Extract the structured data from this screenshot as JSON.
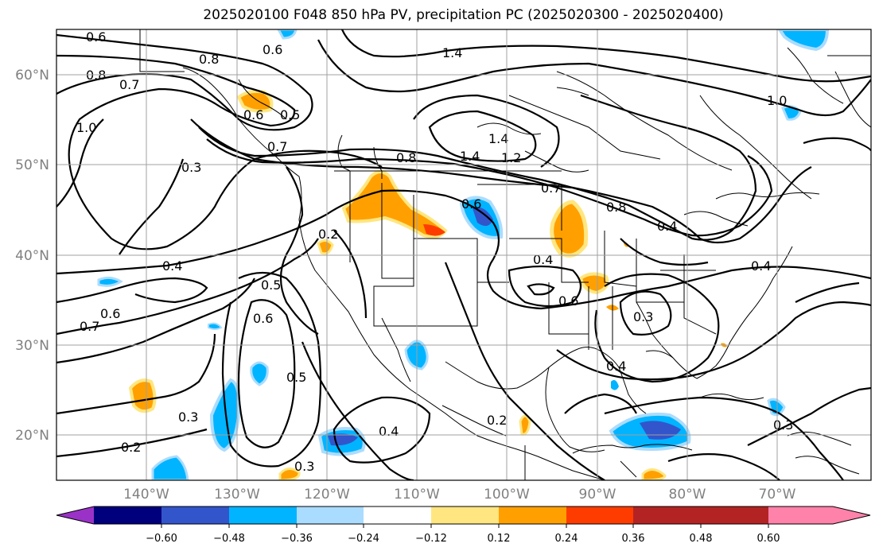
{
  "title": "2025020100 F048 850 hPa PV, precipitation PC (2025020300 - 2025020400)",
  "lat_labels": [
    "60°N",
    "50°N",
    "40°N",
    "30°N",
    "20°N"
  ],
  "lon_labels": [
    "140°W",
    "130°W",
    "120°W",
    "110°W",
    "100°W",
    "90°W",
    "80°W",
    "70°W"
  ],
  "colorbar": {
    "tick_labels": [
      "−0.60",
      "−0.48",
      "−0.36",
      "−0.24",
      "−0.12",
      "0.12",
      "0.24",
      "0.36",
      "0.48",
      "0.60"
    ],
    "colors": [
      "#9b32c8",
      "#00007d",
      "#3355cc",
      "#00b4ff",
      "#aadcff",
      "#ffffff",
      "#ffe680",
      "#ffa000",
      "#ff3c00",
      "#b42323",
      "#ff82aa"
    ]
  },
  "contour_labels": [
    "0.6",
    "0.8",
    "0.6",
    "1.4",
    "0.7",
    "0.8",
    "1.0",
    "0.6",
    "0.5",
    "0.7",
    "0.3",
    "0.8",
    "1.4",
    "1.4",
    "1.2",
    "1.0",
    "0.7",
    "0.6",
    "0.2",
    "0.4",
    "0.4",
    "0.5",
    "0.6",
    "0.6",
    "0.7",
    "0.6",
    "0.5",
    "0.3",
    "0.3",
    "0.4",
    "0.4",
    "0.3",
    "0.4",
    "0.2",
    "0.2",
    "0.3",
    "0.8",
    "0.4"
  ]
}
